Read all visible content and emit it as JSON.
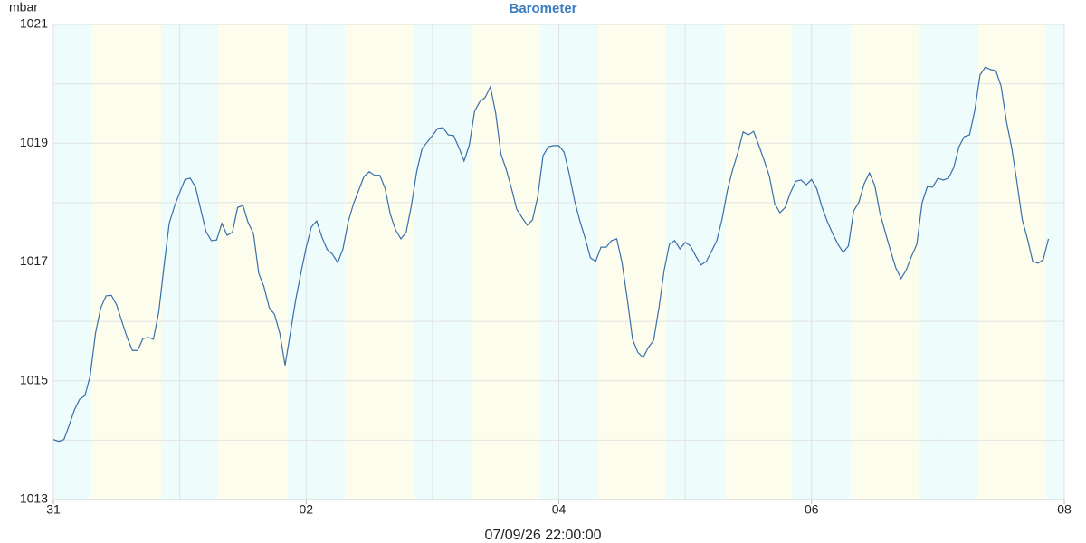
{
  "chart_data": {
    "type": "line",
    "title": "Barometer",
    "y_label": "mbar",
    "x_label": "07/09/26 22:00:00",
    "color": "#3a6ea8",
    "grid": true,
    "xlim": [
      0,
      192
    ],
    "xticks": [
      {
        "value": 0,
        "label": "31"
      },
      {
        "value": 48,
        "label": "02"
      },
      {
        "value": 96,
        "label": "04"
      },
      {
        "value": 144,
        "label": "06"
      },
      {
        "value": 192,
        "label": "08"
      }
    ],
    "xminorticks": [
      24,
      72,
      120,
      168
    ],
    "ylim": [
      1013,
      1021
    ],
    "yticks": [
      1013,
      1015,
      1017,
      1019,
      1021
    ],
    "yminorticks": [
      1014,
      1016,
      1018,
      1020
    ],
    "x": [
      0,
      1,
      2,
      3,
      4,
      5,
      6,
      7,
      8,
      9,
      10,
      11,
      12,
      13,
      14,
      15,
      16,
      17,
      18,
      19,
      20,
      21,
      22,
      23,
      24,
      25,
      26,
      27,
      28,
      29,
      30,
      31,
      32,
      33,
      34,
      35,
      36,
      37,
      38,
      39,
      40,
      41,
      42,
      43,
      44,
      45,
      46,
      47,
      48,
      49,
      50,
      51,
      52,
      53,
      54,
      55,
      56,
      57,
      58,
      59,
      60,
      61,
      62,
      63,
      64,
      65,
      66,
      67,
      68,
      69,
      70,
      71,
      72,
      73,
      74,
      75,
      76,
      77,
      78,
      79,
      80,
      81,
      82,
      83,
      84,
      85,
      86,
      87,
      88,
      89,
      90,
      91,
      92,
      93,
      94,
      95,
      96,
      97,
      98,
      99,
      100,
      101,
      102,
      103,
      104,
      105,
      106,
      107,
      108,
      109,
      110,
      111,
      112,
      113,
      114,
      115,
      116,
      117,
      118,
      119,
      120,
      121,
      122,
      123,
      124,
      125,
      126,
      127,
      128,
      129,
      130,
      131,
      132,
      133,
      134,
      135,
      136,
      137,
      138,
      139,
      140,
      141,
      142,
      143,
      144,
      145,
      146,
      147,
      148,
      149,
      150,
      151,
      152,
      153,
      154,
      155,
      156,
      157,
      158,
      159,
      160,
      161,
      162,
      163,
      164,
      165,
      166,
      167,
      168,
      169,
      170,
      171,
      172,
      173,
      174,
      175,
      176,
      177,
      178,
      179,
      180,
      181,
      182,
      183,
      184,
      185,
      186,
      187,
      188,
      189
    ],
    "values": [
      1014.01,
      1013.98,
      1014.01,
      1014.25,
      1014.51,
      1014.69,
      1014.75,
      1015.09,
      1015.8,
      1016.23,
      1016.43,
      1016.44,
      1016.28,
      1016.0,
      1015.73,
      1015.51,
      1015.51,
      1015.71,
      1015.73,
      1015.7,
      1016.15,
      1016.92,
      1017.65,
      1017.94,
      1018.17,
      1018.39,
      1018.41,
      1018.26,
      1017.88,
      1017.51,
      1017.36,
      1017.37,
      1017.65,
      1017.45,
      1017.5,
      1017.92,
      1017.95,
      1017.66,
      1017.48,
      1016.81,
      1016.58,
      1016.23,
      1016.12,
      1015.8,
      1015.26,
      1015.8,
      1016.35,
      1016.81,
      1017.24,
      1017.59,
      1017.69,
      1017.42,
      1017.21,
      1017.13,
      1016.99,
      1017.22,
      1017.68,
      1017.98,
      1018.21,
      1018.44,
      1018.52,
      1018.46,
      1018.46,
      1018.24,
      1017.8,
      1017.54,
      1017.39,
      1017.5,
      1017.95,
      1018.52,
      1018.9,
      1019.02,
      1019.13,
      1019.25,
      1019.26,
      1019.14,
      1019.13,
      1018.93,
      1018.7,
      1018.97,
      1019.54,
      1019.7,
      1019.77,
      1019.95,
      1019.51,
      1018.82,
      1018.56,
      1018.24,
      1017.89,
      1017.75,
      1017.62,
      1017.71,
      1018.1,
      1018.79,
      1018.94,
      1018.96,
      1018.96,
      1018.85,
      1018.47,
      1018.03,
      1017.69,
      1017.4,
      1017.07,
      1017.01,
      1017.25,
      1017.25,
      1017.36,
      1017.39,
      1016.99,
      1016.38,
      1015.7,
      1015.48,
      1015.39,
      1015.56,
      1015.68,
      1016.22,
      1016.86,
      1017.3,
      1017.36,
      1017.22,
      1017.33,
      1017.27,
      1017.1,
      1016.95,
      1017.01,
      1017.18,
      1017.36,
      1017.72,
      1018.2,
      1018.55,
      1018.84,
      1019.19,
      1019.14,
      1019.2,
      1018.96,
      1018.71,
      1018.44,
      1017.98,
      1017.83,
      1017.92,
      1018.17,
      1018.36,
      1018.38,
      1018.3,
      1018.39,
      1018.23,
      1017.92,
      1017.68,
      1017.48,
      1017.3,
      1017.16,
      1017.27,
      1017.86,
      1018.01,
      1018.32,
      1018.5,
      1018.29,
      1017.82,
      1017.5,
      1017.19,
      1016.9,
      1016.72,
      1016.87,
      1017.1,
      1017.3,
      1018.0,
      1018.27,
      1018.26,
      1018.41,
      1018.38,
      1018.41,
      1018.59,
      1018.94,
      1019.11,
      1019.14,
      1019.55,
      1020.15,
      1020.28,
      1020.24,
      1020.22,
      1019.96,
      1019.37,
      1018.93,
      1018.35,
      1017.72,
      1017.39,
      1017.01,
      1016.98,
      1017.04,
      1017.39
    ]
  }
}
